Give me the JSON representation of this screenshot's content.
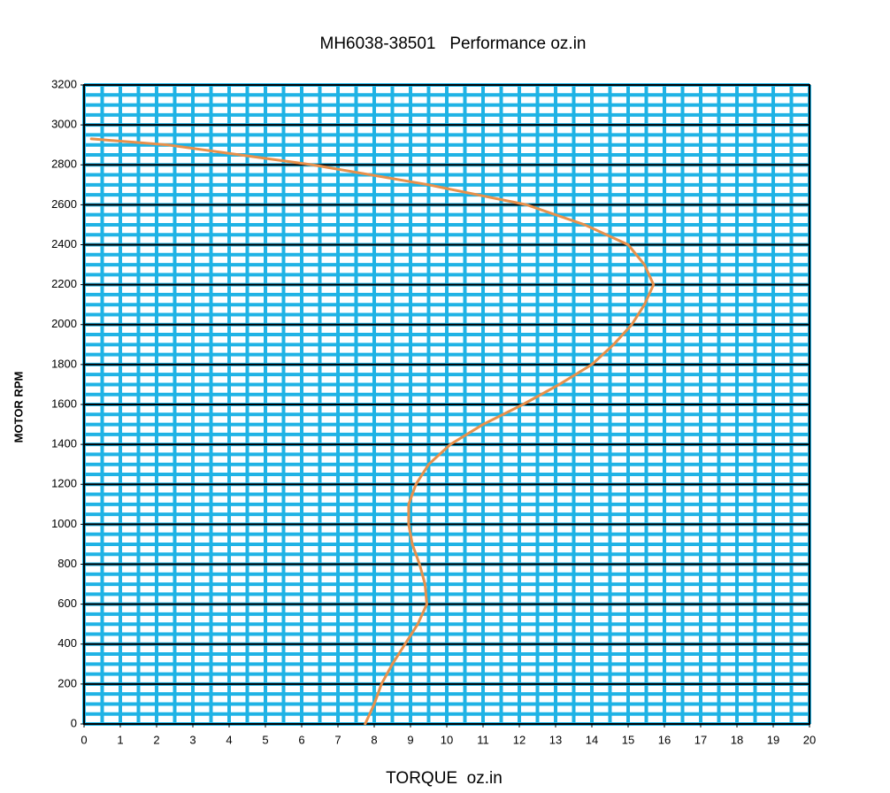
{
  "chart_data": {
    "type": "line",
    "title": "MH6038-38501   Performance oz.in",
    "x_label": "TORQUE  oz.in",
    "y_label": "MOTOR RPM",
    "x": [
      7.75,
      8.0,
      8.2,
      8.5,
      8.85,
      9.2,
      9.45,
      9.4,
      9.25,
      9.05,
      8.95,
      8.95,
      9.15,
      9.5,
      10.1,
      11.0,
      12.1,
      13.1,
      14.0,
      14.6,
      15.1,
      15.45,
      15.7,
      15.45,
      15.0,
      13.8,
      12.2,
      9.5,
      6.3,
      2.3,
      0.2
    ],
    "series": [
      {
        "color": "#e8904a",
        "values": [
          0,
          100,
          200,
          300,
          400,
          500,
          600,
          700,
          800,
          900,
          1000,
          1100,
          1200,
          1300,
          1400,
          1500,
          1600,
          1700,
          1800,
          1900,
          2000,
          2100,
          2200,
          2300,
          2400,
          2500,
          2600,
          2700,
          2800,
          2900,
          2930
        ]
      }
    ],
    "xlim": [
      0,
      20
    ],
    "ylim": [
      0,
      3200
    ],
    "xticks": [
      0,
      1,
      2,
      3,
      4,
      5,
      6,
      7,
      8,
      9,
      10,
      11,
      12,
      13,
      14,
      15,
      16,
      17,
      18,
      19,
      20
    ],
    "yticks": [
      0,
      200,
      400,
      600,
      800,
      1000,
      1200,
      1400,
      1600,
      1800,
      2000,
      2200,
      2400,
      2600,
      2800,
      3000,
      3200
    ],
    "grid": true,
    "grid_color": "#1fb3e5",
    "minor_grid": {
      "x": 0.5,
      "y": 50
    }
  }
}
